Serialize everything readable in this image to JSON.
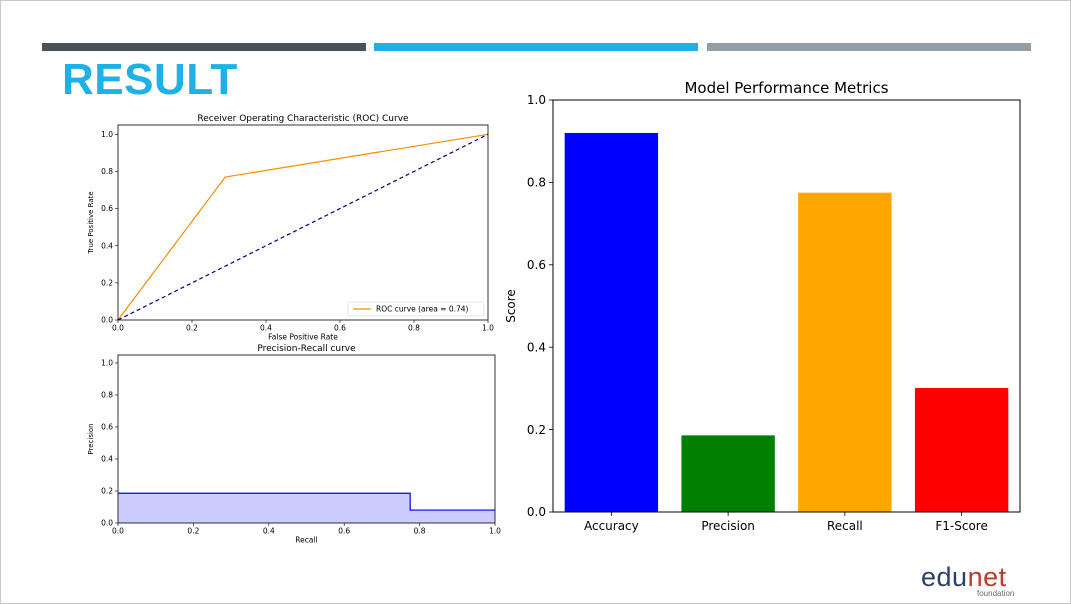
{
  "slide": {
    "title": "RESULT",
    "logo": {
      "part1": "edu",
      "part2": "net",
      "subtitle": "foundation"
    }
  },
  "chart_data": [
    {
      "id": "roc",
      "type": "line",
      "title": "Receiver Operating Characteristic (ROC) Curve",
      "xlabel": "False Positive Rate",
      "ylabel": "True Positive Rate",
      "xlim": [
        0,
        1
      ],
      "ylim": [
        0,
        1.05
      ],
      "xticks": [
        "0.0",
        "0.2",
        "0.4",
        "0.6",
        "0.8",
        "1.0"
      ],
      "yticks": [
        "0.0",
        "0.2",
        "0.4",
        "0.6",
        "0.8",
        "1.0"
      ],
      "legend_position": "lower-right",
      "series": [
        {
          "name": "ROC curve (area = 0.74)",
          "color": "#ff8c00",
          "style": "solid",
          "x": [
            0.0,
            0.29,
            1.0
          ],
          "y": [
            0.0,
            0.77,
            1.0
          ]
        },
        {
          "color": "#000080",
          "style": "dashed",
          "x": [
            0.0,
            1.0
          ],
          "y": [
            0.0,
            1.0
          ]
        }
      ]
    },
    {
      "id": "pr",
      "type": "area",
      "title": "Precision-Recall curve",
      "xlabel": "Recall",
      "ylabel": "Precision",
      "xlim": [
        0,
        1
      ],
      "ylim": [
        0,
        1.05
      ],
      "xticks": [
        "0.0",
        "0.2",
        "0.4",
        "0.6",
        "0.8",
        "1.0"
      ],
      "yticks": [
        "0.0",
        "0.2",
        "0.4",
        "0.6",
        "0.8",
        "1.0"
      ],
      "series": [
        {
          "color": "#0000ff",
          "fill": "#ccccff",
          "step": "post",
          "x": [
            0.0,
            0.775,
            0.775,
            1.0
          ],
          "y": [
            0.186,
            0.186,
            0.081,
            0.081
          ]
        }
      ]
    },
    {
      "id": "metrics",
      "type": "bar",
      "title": "Model Performance Metrics",
      "xlabel": "",
      "ylabel": "Score",
      "ylim": [
        0,
        1
      ],
      "yticks": [
        "0.0",
        "0.2",
        "0.4",
        "0.6",
        "0.8",
        "1.0"
      ],
      "categories": [
        "Accuracy",
        "Precision",
        "Recall",
        "F1-Score"
      ],
      "values": [
        0.92,
        0.186,
        0.775,
        0.301
      ],
      "colors": [
        "#0000ff",
        "#008000",
        "#ffa500",
        "#ff0000"
      ]
    }
  ]
}
